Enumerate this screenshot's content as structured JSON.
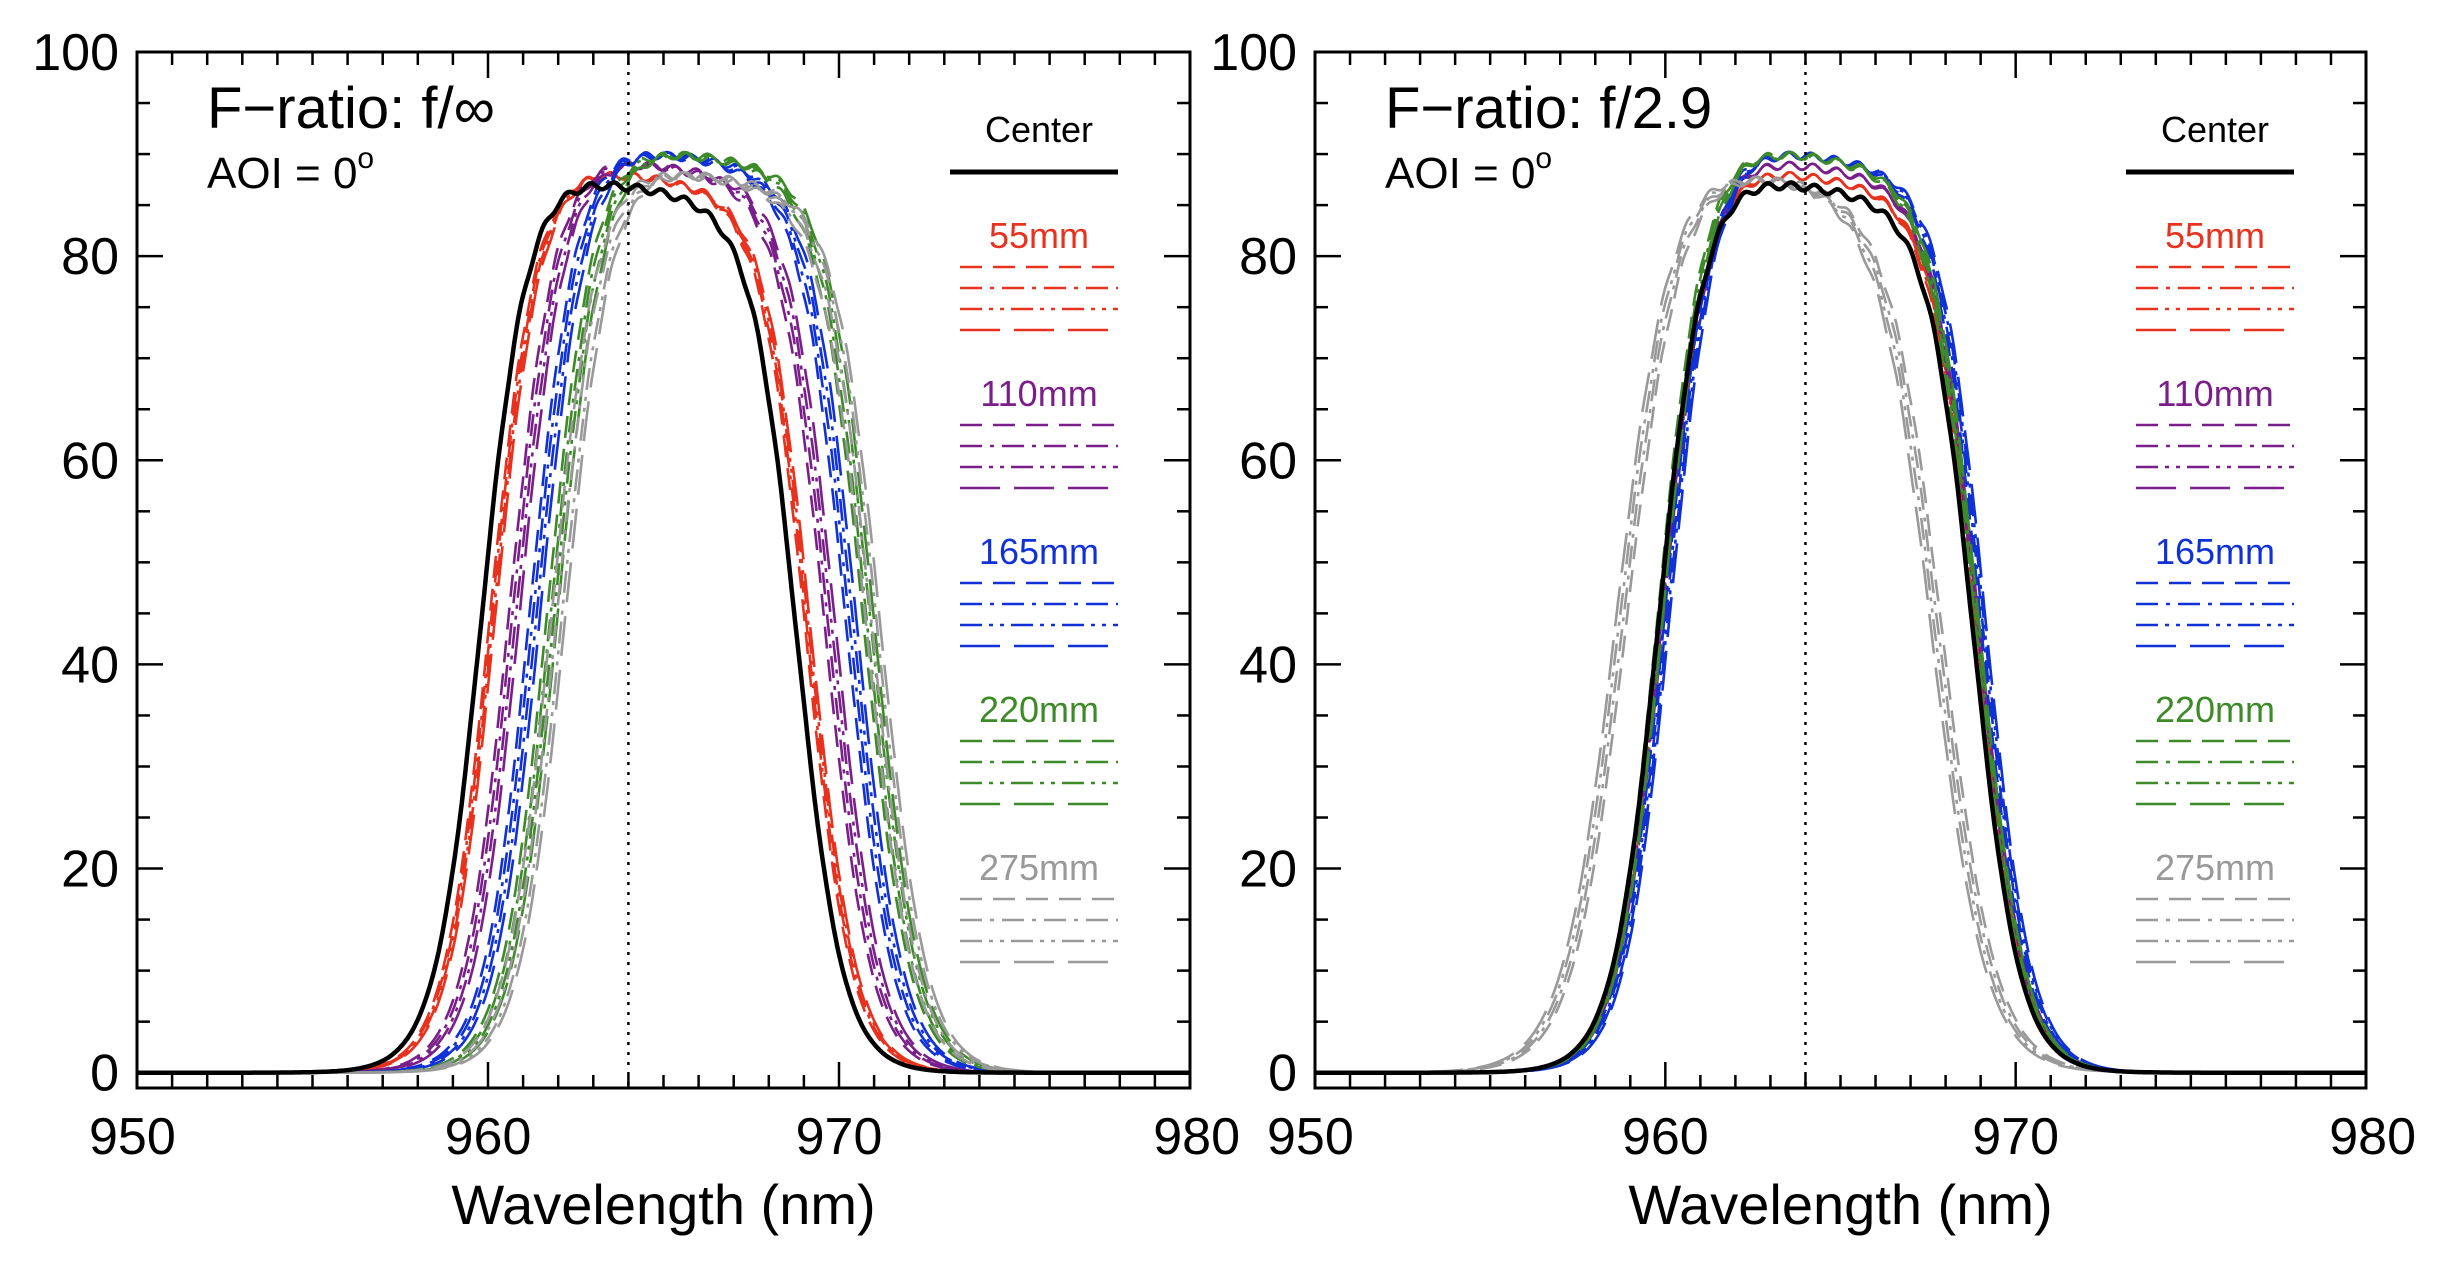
{
  "chart_data": [
    {
      "type": "line",
      "title": "F−ratio: f/∞",
      "subtitle_text": "AOI = 0",
      "subtitle_sup": "o",
      "xlabel": "Wavelength (nm)",
      "ylabel": "",
      "xlim": [
        950,
        980
      ],
      "ylim": [
        -1.5,
        100
      ],
      "xticks": [
        950,
        960,
        970,
        980
      ],
      "yticks": [
        0,
        20,
        40,
        60,
        80,
        100
      ],
      "tick_labels_x": [
        "950",
        "960",
        "970",
        "980"
      ],
      "tick_labels_y": [
        "0",
        "20",
        "40",
        "60",
        "80",
        "100"
      ],
      "reference_line_x": 964,
      "legend": {
        "center_label": "Center",
        "groups": [
          {
            "label": "55mm",
            "color": "#e8321e"
          },
          {
            "label": "110mm",
            "color": "#7a1f8a"
          },
          {
            "label": "165mm",
            "color": "#1030d8"
          },
          {
            "label": "220mm",
            "color": "#3c8a28"
          },
          {
            "label": "275mm",
            "color": "#999999"
          }
        ]
      },
      "series": [
        {
          "name": "Center",
          "color": "#000000",
          "dash": "solid",
          "shift": 0.0,
          "peak": 88,
          "slope": 1.0
        },
        {
          "name": "55mm",
          "color": "#e8321e",
          "dash": "dash",
          "shift": 0.25,
          "peak": 89,
          "slope": 1.0
        },
        {
          "name": "55mm",
          "color": "#e8321e",
          "dash": "dashdot",
          "shift": 0.3,
          "peak": 89,
          "slope": 1.0
        },
        {
          "name": "55mm",
          "color": "#e8321e",
          "dash": "dashdotdot",
          "shift": 0.35,
          "peak": 89,
          "slope": 1.0
        },
        {
          "name": "55mm",
          "color": "#e8321e",
          "dash": "longdash",
          "shift": 0.4,
          "peak": 89,
          "slope": 1.0
        },
        {
          "name": "110mm",
          "color": "#7a1f8a",
          "dash": "dash",
          "shift": 0.8,
          "peak": 90,
          "slope": 1.0
        },
        {
          "name": "110mm",
          "color": "#7a1f8a",
          "dash": "dashdot",
          "shift": 0.9,
          "peak": 90,
          "slope": 1.0
        },
        {
          "name": "110mm",
          "color": "#7a1f8a",
          "dash": "dashdotdot",
          "shift": 1.0,
          "peak": 90,
          "slope": 1.0
        },
        {
          "name": "110mm",
          "color": "#7a1f8a",
          "dash": "longdash",
          "shift": 1.1,
          "peak": 90,
          "slope": 1.0
        },
        {
          "name": "165mm",
          "color": "#1030d8",
          "dash": "dash",
          "shift": 1.4,
          "peak": 91,
          "slope": 1.0
        },
        {
          "name": "165mm",
          "color": "#1030d8",
          "dash": "dashdot",
          "shift": 1.5,
          "peak": 91,
          "slope": 1.0
        },
        {
          "name": "165mm",
          "color": "#1030d8",
          "dash": "dashdotdot",
          "shift": 1.6,
          "peak": 91,
          "slope": 1.0
        },
        {
          "name": "165mm",
          "color": "#1030d8",
          "dash": "longdash",
          "shift": 1.7,
          "peak": 91,
          "slope": 1.0
        },
        {
          "name": "220mm",
          "color": "#3c8a28",
          "dash": "dash",
          "shift": 1.9,
          "peak": 91,
          "slope": 1.0
        },
        {
          "name": "220mm",
          "color": "#3c8a28",
          "dash": "dashdot",
          "shift": 2.0,
          "peak": 91,
          "slope": 1.0
        },
        {
          "name": "220mm",
          "color": "#3c8a28",
          "dash": "dashdotdot",
          "shift": 2.1,
          "peak": 91,
          "slope": 1.0
        },
        {
          "name": "220mm",
          "color": "#3c8a28",
          "dash": "longdash",
          "shift": 2.2,
          "peak": 91,
          "slope": 1.0
        },
        {
          "name": "275mm",
          "color": "#999999",
          "dash": "dash",
          "shift": 2.0,
          "peak": 89,
          "slope": 1.0
        },
        {
          "name": "275mm",
          "color": "#999999",
          "dash": "dashdot",
          "shift": 2.15,
          "peak": 89,
          "slope": 1.0
        },
        {
          "name": "275mm",
          "color": "#999999",
          "dash": "dashdotdot",
          "shift": 2.3,
          "peak": 89,
          "slope": 1.0
        },
        {
          "name": "275mm",
          "color": "#999999",
          "dash": "longdash",
          "shift": 2.4,
          "peak": 89,
          "slope": 1.0
        }
      ]
    },
    {
      "type": "line",
      "title": "F−ratio: f/2.9",
      "subtitle_text": "AOI = 0",
      "subtitle_sup": "o",
      "xlabel": "Wavelength (nm)",
      "ylabel": "",
      "xlim": [
        950,
        980
      ],
      "ylim": [
        -1.5,
        100
      ],
      "xticks": [
        950,
        960,
        970,
        980
      ],
      "yticks": [
        0,
        20,
        40,
        60,
        80,
        100
      ],
      "tick_labels_x": [
        "950",
        "960",
        "970",
        "980"
      ],
      "tick_labels_y": [
        "0",
        "20",
        "40",
        "60",
        "80",
        "100"
      ],
      "reference_line_x": 964,
      "legend": {
        "center_label": "Center",
        "groups": [
          {
            "label": "55mm",
            "color": "#e8321e"
          },
          {
            "label": "110mm",
            "color": "#7a1f8a"
          },
          {
            "label": "165mm",
            "color": "#1030d8"
          },
          {
            "label": "220mm",
            "color": "#3c8a28"
          },
          {
            "label": "275mm",
            "color": "#999999"
          }
        ]
      },
      "series": [
        {
          "name": "Center",
          "color": "#000000",
          "dash": "solid",
          "shift": 0.0,
          "peak": 88,
          "slope": 1.0
        },
        {
          "name": "55mm",
          "color": "#e8321e",
          "dash": "dash",
          "shift": 0.05,
          "peak": 89,
          "slope": 1.0
        },
        {
          "name": "55mm",
          "color": "#e8321e",
          "dash": "dashdot",
          "shift": 0.08,
          "peak": 89,
          "slope": 1.0
        },
        {
          "name": "55mm",
          "color": "#e8321e",
          "dash": "dashdotdot",
          "shift": 0.1,
          "peak": 89,
          "slope": 1.0
        },
        {
          "name": "55mm",
          "color": "#e8321e",
          "dash": "longdash",
          "shift": 0.12,
          "peak": 89,
          "slope": 1.0
        },
        {
          "name": "110mm",
          "color": "#7a1f8a",
          "dash": "dash",
          "shift": 0.1,
          "peak": 90,
          "slope": 1.0
        },
        {
          "name": "110mm",
          "color": "#7a1f8a",
          "dash": "dashdot",
          "shift": 0.12,
          "peak": 90,
          "slope": 1.0
        },
        {
          "name": "110mm",
          "color": "#7a1f8a",
          "dash": "dashdotdot",
          "shift": 0.14,
          "peak": 90,
          "slope": 1.0
        },
        {
          "name": "110mm",
          "color": "#7a1f8a",
          "dash": "longdash",
          "shift": 0.16,
          "peak": 90,
          "slope": 1.0
        },
        {
          "name": "165mm",
          "color": "#1030d8",
          "dash": "dash",
          "shift": 0.2,
          "peak": 91,
          "slope": 1.0
        },
        {
          "name": "165mm",
          "color": "#1030d8",
          "dash": "dashdot",
          "shift": 0.25,
          "peak": 91,
          "slope": 1.0
        },
        {
          "name": "165mm",
          "color": "#1030d8",
          "dash": "dashdotdot",
          "shift": 0.3,
          "peak": 91,
          "slope": 1.0
        },
        {
          "name": "165mm",
          "color": "#1030d8",
          "dash": "longdash",
          "shift": 0.35,
          "peak": 91,
          "slope": 1.0
        },
        {
          "name": "220mm",
          "color": "#3c8a28",
          "dash": "dash",
          "shift": 0.0,
          "peak": 91,
          "slope": 1.0
        },
        {
          "name": "220mm",
          "color": "#3c8a28",
          "dash": "dashdot",
          "shift": 0.05,
          "peak": 91,
          "slope": 1.0
        },
        {
          "name": "220mm",
          "color": "#3c8a28",
          "dash": "dashdotdot",
          "shift": 0.1,
          "peak": 91,
          "slope": 1.0
        },
        {
          "name": "220mm",
          "color": "#3c8a28",
          "dash": "longdash",
          "shift": 0.15,
          "peak": 91,
          "slope": 1.0
        },
        {
          "name": "275mm",
          "color": "#999999",
          "dash": "dash",
          "shift": -0.9,
          "peak": 89,
          "slope": 0.85
        },
        {
          "name": "275mm",
          "color": "#999999",
          "dash": "dashdot",
          "shift": -1.0,
          "peak": 89,
          "slope": 0.85
        },
        {
          "name": "275mm",
          "color": "#999999",
          "dash": "dashdotdot",
          "shift": -1.1,
          "peak": 89,
          "slope": 0.85
        },
        {
          "name": "275mm",
          "color": "#999999",
          "dash": "longdash",
          "shift": -1.2,
          "peak": 89,
          "slope": 0.85
        }
      ]
    }
  ]
}
